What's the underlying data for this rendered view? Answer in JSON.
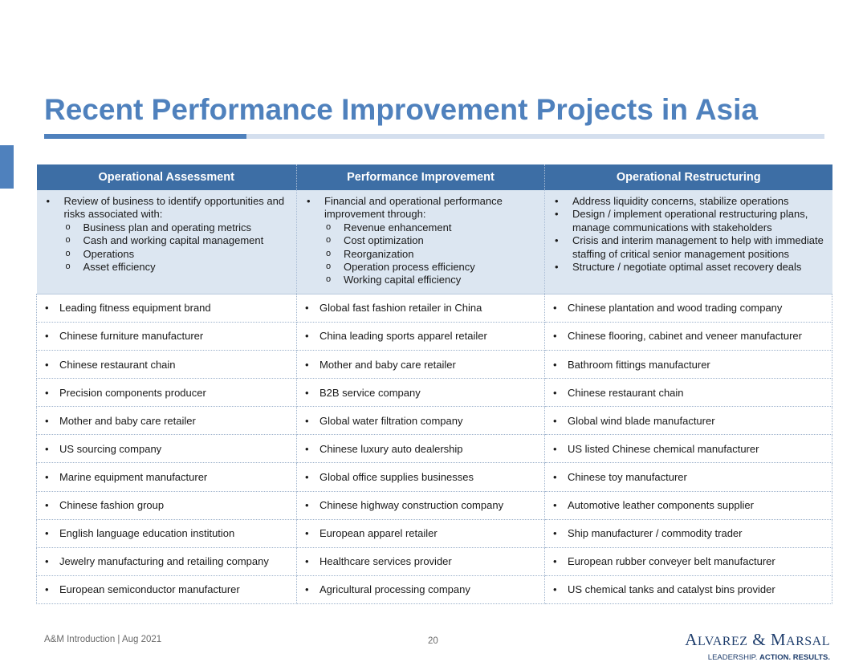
{
  "title": "Recent Performance Improvement Projects in Asia",
  "columns": [
    {
      "header": "Operational Assessment",
      "description": [
        {
          "text": "Review of business to identify opportunities and risks associated with:",
          "sub": [
            "Business plan and operating metrics",
            "Cash and working capital management",
            "Operations",
            "Asset efficiency"
          ]
        }
      ]
    },
    {
      "header": "Performance Improvement",
      "description": [
        {
          "text": "Financial and operational performance improvement through:",
          "sub": [
            "Revenue enhancement",
            "Cost optimization",
            "Reorganization",
            "Operation process efficiency",
            "Working capital efficiency"
          ]
        }
      ]
    },
    {
      "header": "Operational Restructuring",
      "description": [
        {
          "text": "Address liquidity concerns, stabilize operations",
          "sub": []
        },
        {
          "text": "Design / implement operational restructuring plans, manage communications with stakeholders",
          "sub": []
        },
        {
          "text": "Crisis and interim management to help with immediate staffing of critical senior management positions",
          "sub": []
        },
        {
          "text": "Structure / negotiate optimal asset recovery deals",
          "sub": []
        }
      ]
    }
  ],
  "rows": [
    [
      "Leading fitness equipment brand",
      "Global fast fashion retailer in China",
      "Chinese plantation and wood trading company"
    ],
    [
      "Chinese furniture manufacturer",
      "China leading sports apparel retailer",
      "Chinese flooring, cabinet and veneer manufacturer"
    ],
    [
      "Chinese restaurant chain",
      "Mother and baby care retailer",
      "Bathroom fittings manufacturer"
    ],
    [
      "Precision components producer",
      "B2B service company",
      "Chinese restaurant chain"
    ],
    [
      "Mother and baby care retailer",
      "Global water filtration company",
      "Global wind blade manufacturer"
    ],
    [
      "US sourcing company",
      "Chinese luxury auto dealership",
      "US listed Chinese chemical manufacturer"
    ],
    [
      "Marine equipment manufacturer",
      "Global office supplies businesses",
      "Chinese toy manufacturer"
    ],
    [
      "Chinese fashion group",
      "Chinese highway construction company",
      "Automotive leather components supplier"
    ],
    [
      "English language education institution",
      "European apparel retailer",
      "Ship manufacturer / commodity trader"
    ],
    [
      "Jewelry manufacturing and retailing company",
      "Healthcare services provider",
      "European rubber conveyer belt manufacturer"
    ],
    [
      "European semiconductor manufacturer",
      "Agricultural processing company",
      "US chemical tanks and catalyst bins provider"
    ]
  ],
  "footer": {
    "left": "A&M Introduction | Aug 2021",
    "page": "20"
  },
  "logo": {
    "name": "Alvarez & Marsal",
    "tagline": "LEADERSHIP. ACTION. RESULTS."
  },
  "colors": {
    "accent": "#4f81bd",
    "header_bg": "#3d6ea5",
    "desc_bg": "#dce6f1",
    "logo": "#1f3e6d"
  }
}
